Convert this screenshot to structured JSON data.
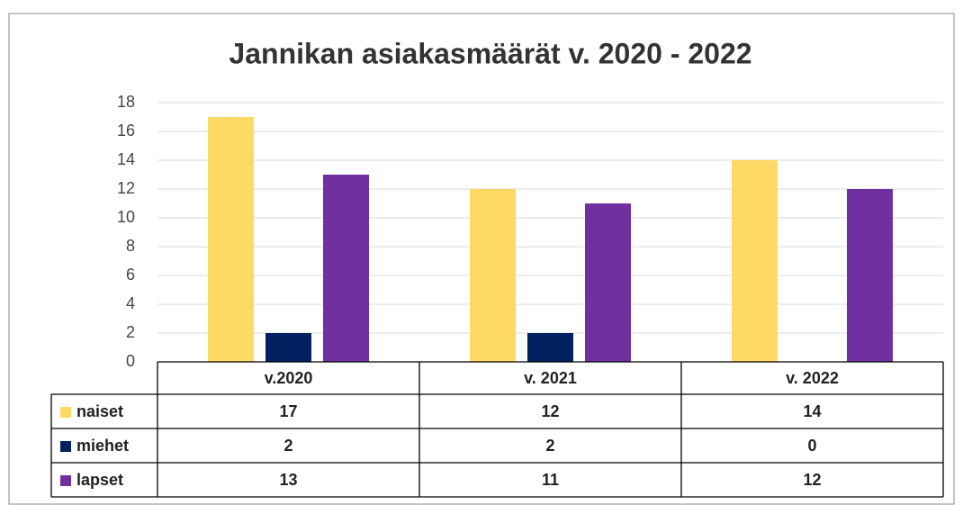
{
  "chart_data": {
    "type": "bar",
    "title": "Jannikan asiakasmäärät v. 2020 - 2022",
    "categories": [
      "v.2020",
      "v. 2021",
      "v. 2022"
    ],
    "series": [
      {
        "name": "naiset",
        "color": "#ffd966",
        "values": [
          17,
          12,
          14
        ]
      },
      {
        "name": "miehet",
        "color": "#002060",
        "values": [
          2,
          2,
          0
        ]
      },
      {
        "name": "lapset",
        "color": "#7030a0",
        "values": [
          13,
          11,
          12
        ]
      }
    ],
    "ylim": [
      0,
      18
    ],
    "yticks": [
      0,
      2,
      4,
      6,
      8,
      10,
      12,
      14,
      16,
      18
    ],
    "grid": true,
    "data_table": true
  }
}
